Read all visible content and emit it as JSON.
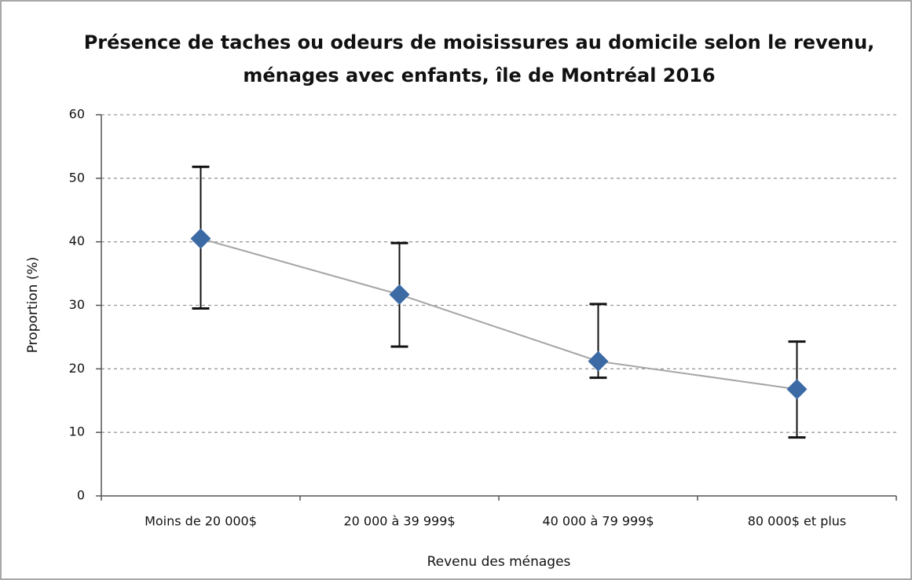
{
  "chart_data": {
    "type": "line",
    "title": [
      "Présence de taches ou odeurs de moisissures au domicile selon le revenu,",
      "ménages avec enfants, île de Montréal 2016"
    ],
    "x_label": "Revenu des ménages",
    "y_label": "Proportion (%)",
    "categories": [
      "Moins de 20 000$",
      "20 000 à 39 999$",
      "40 000 à 79 999$",
      "80 000$ et plus"
    ],
    "values": [
      40.5,
      31.7,
      21.2,
      16.8
    ],
    "ci_low": [
      29.5,
      23.5,
      18.6,
      9.2
    ],
    "ci_high": [
      51.8,
      39.8,
      30.2,
      24.3
    ],
    "color": "#3b6aa5",
    "line_color": "#a6a6a6",
    "ylim": [
      0,
      60
    ],
    "yticks": [
      0,
      10,
      20,
      30,
      40,
      50,
      60
    ],
    "grid": true
  }
}
